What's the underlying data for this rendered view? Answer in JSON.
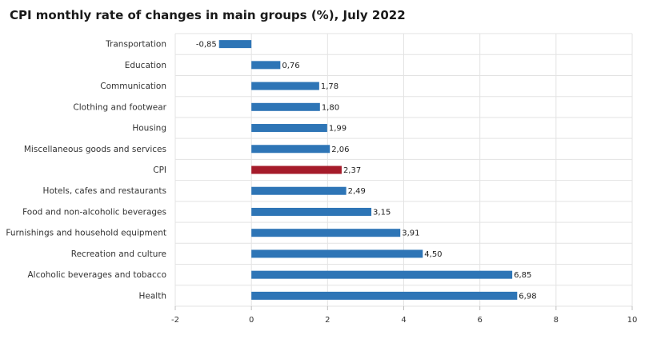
{
  "chart_data": {
    "type": "bar",
    "orientation": "horizontal",
    "title": "CPI monthly rate of changes in main groups (%), July 2022",
    "categories": [
      "Transportation",
      "Education",
      "Communication",
      "Clothing and footwear",
      "Housing",
      "Miscellaneous goods and services",
      "CPI",
      "Hotels, cafes and restaurants",
      "Food and non-alcoholic beverages",
      "Furnishings and household equipment",
      "Recreation and culture",
      "Alcoholic beverages and tobacco",
      "Health"
    ],
    "values": [
      -0.85,
      0.76,
      1.78,
      1.8,
      1.99,
      2.06,
      2.37,
      2.49,
      3.15,
      3.91,
      4.5,
      6.85,
      6.98
    ],
    "value_labels": [
      "-0,85",
      "0,76",
      "1,78",
      "1,80",
      "1,99",
      "2,06",
      "2,37",
      "2,49",
      "3,15",
      "3,91",
      "4,50",
      "6,85",
      "6,98"
    ],
    "xlim": [
      -2,
      10
    ],
    "x_ticks": [
      -2,
      0,
      2,
      4,
      6,
      8,
      10
    ],
    "x_tick_labels": [
      "-2",
      "0",
      "2",
      "4",
      "6",
      "8",
      "10"
    ],
    "grid": true,
    "colors": {
      "bar": "#2e75b6",
      "highlight": "#a51b2a",
      "grid": "#e3e3e3"
    },
    "highlight_category": "CPI"
  }
}
